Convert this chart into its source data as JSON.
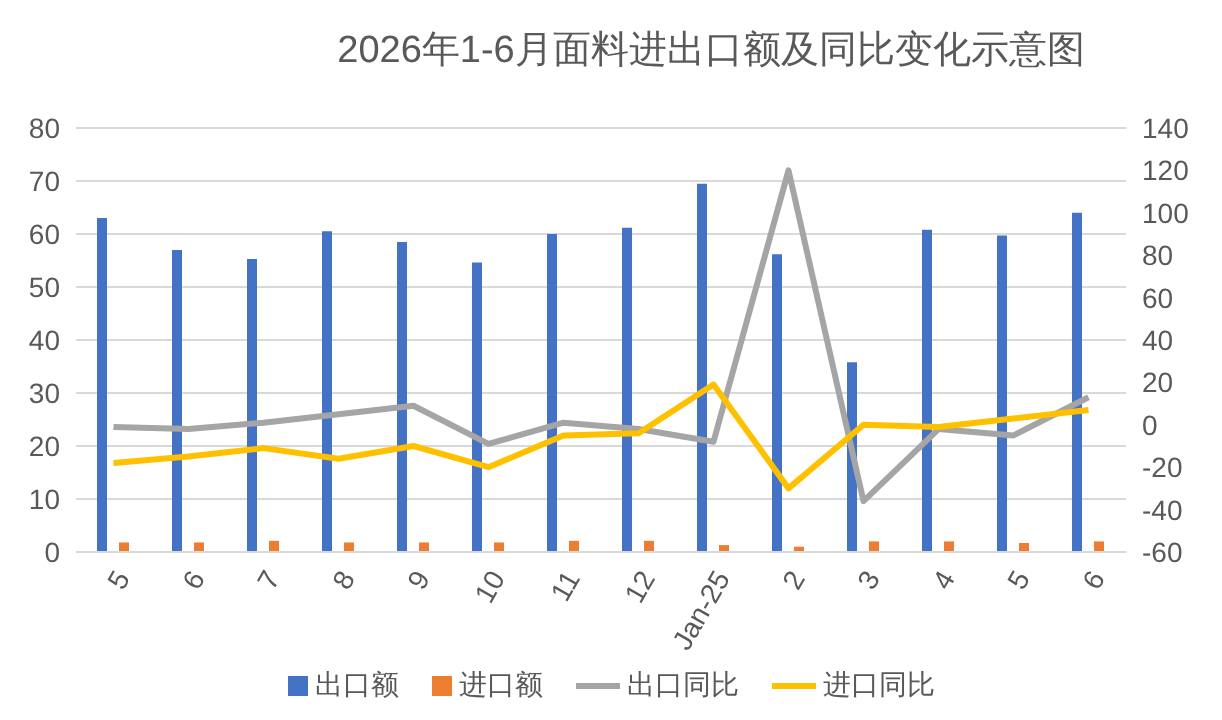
{
  "chart_data": {
    "type": "bar",
    "title": "2026年1-6月面料进出口额及同比变化示意图",
    "categories": [
      "5",
      "6",
      "7",
      "8",
      "9",
      "10",
      "11",
      "12",
      "Jan-25",
      "2",
      "3",
      "4",
      "5",
      "6"
    ],
    "series": [
      {
        "name": "出口额",
        "color": "#4472c4",
        "values": [
          63,
          57,
          55.3,
          60.5,
          58.5,
          54.6,
          60,
          61.2,
          69.5,
          56.2,
          35.8,
          60.8,
          59.7,
          64
        ]
      },
      {
        "name": "进口额",
        "color": "#ed7d31",
        "values": [
          1.8,
          1.8,
          2.1,
          1.8,
          1.8,
          1.8,
          2.1,
          2.1,
          1.3,
          1,
          2,
          2,
          1.7,
          2
        ]
      },
      {
        "name": "出口同比",
        "type": "line",
        "axis": "y2",
        "color": "#a5a5a5",
        "values": [
          -1,
          -2,
          1,
          5,
          9,
          -9,
          1,
          -2,
          -8,
          120,
          -36,
          -2,
          -5,
          13
        ]
      },
      {
        "name": "进口同比",
        "type": "line",
        "axis": "y2",
        "color": "#ffc000",
        "values": [
          -18,
          -15,
          -11,
          -16,
          -10,
          -20,
          -5,
          -4,
          19,
          -30,
          0,
          -1,
          3,
          7
        ]
      }
    ],
    "ylim": [
      0,
      80
    ],
    "yticks": [
      0,
      10,
      20,
      30,
      40,
      50,
      60,
      70,
      80
    ],
    "y2lim": [
      -60,
      140
    ],
    "y2ticks": [
      -60,
      -40,
      -20,
      0,
      20,
      40,
      60,
      80,
      100,
      120,
      140
    ],
    "grid": "y",
    "legend": "bottom",
    "marker": "none"
  }
}
